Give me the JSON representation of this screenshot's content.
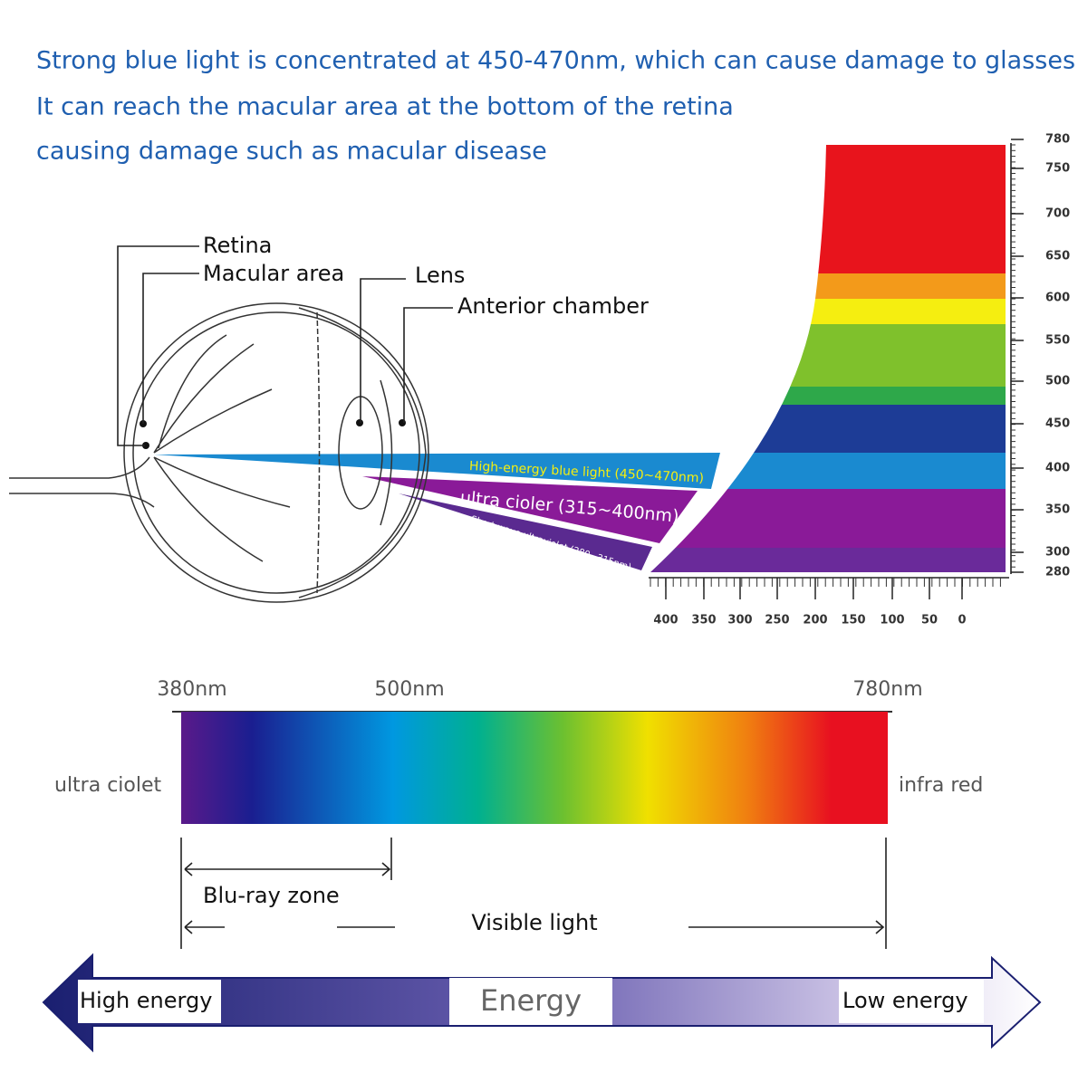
{
  "header": {
    "lines": [
      "Strong blue light is concentrated at 450-470nm, which can cause damage to glasses",
      "It can reach the macular area at the bottom of the retina",
      "causing damage such as macular disease"
    ]
  },
  "eye_labels": {
    "retina": "Retina",
    "macular_area": "Macular area",
    "lens": "Lens",
    "anterior_chamber": "Anterior chamber"
  },
  "beams": [
    "High-energy blue light (450~470nm)",
    "ultra cioler (315~400nm)",
    "Short-wave ultraviolet (280~315nm)"
  ],
  "wavelength_scale": {
    "labels": [
      780,
      750,
      700,
      650,
      600,
      550,
      500,
      450,
      400,
      350,
      300,
      280
    ]
  },
  "bottom_scale": {
    "labels": [
      400,
      350,
      300,
      250,
      200,
      150,
      100,
      50,
      0
    ]
  },
  "spectrum": {
    "start": "380nm",
    "mid": "500nm",
    "end": "780nm",
    "left": "ultra ciolet",
    "right": "infra red",
    "zone": "Blu-ray zone",
    "visible": "Visible light"
  },
  "energy": {
    "high": "High energy",
    "middle": "Energy",
    "low": "Low energy"
  }
}
